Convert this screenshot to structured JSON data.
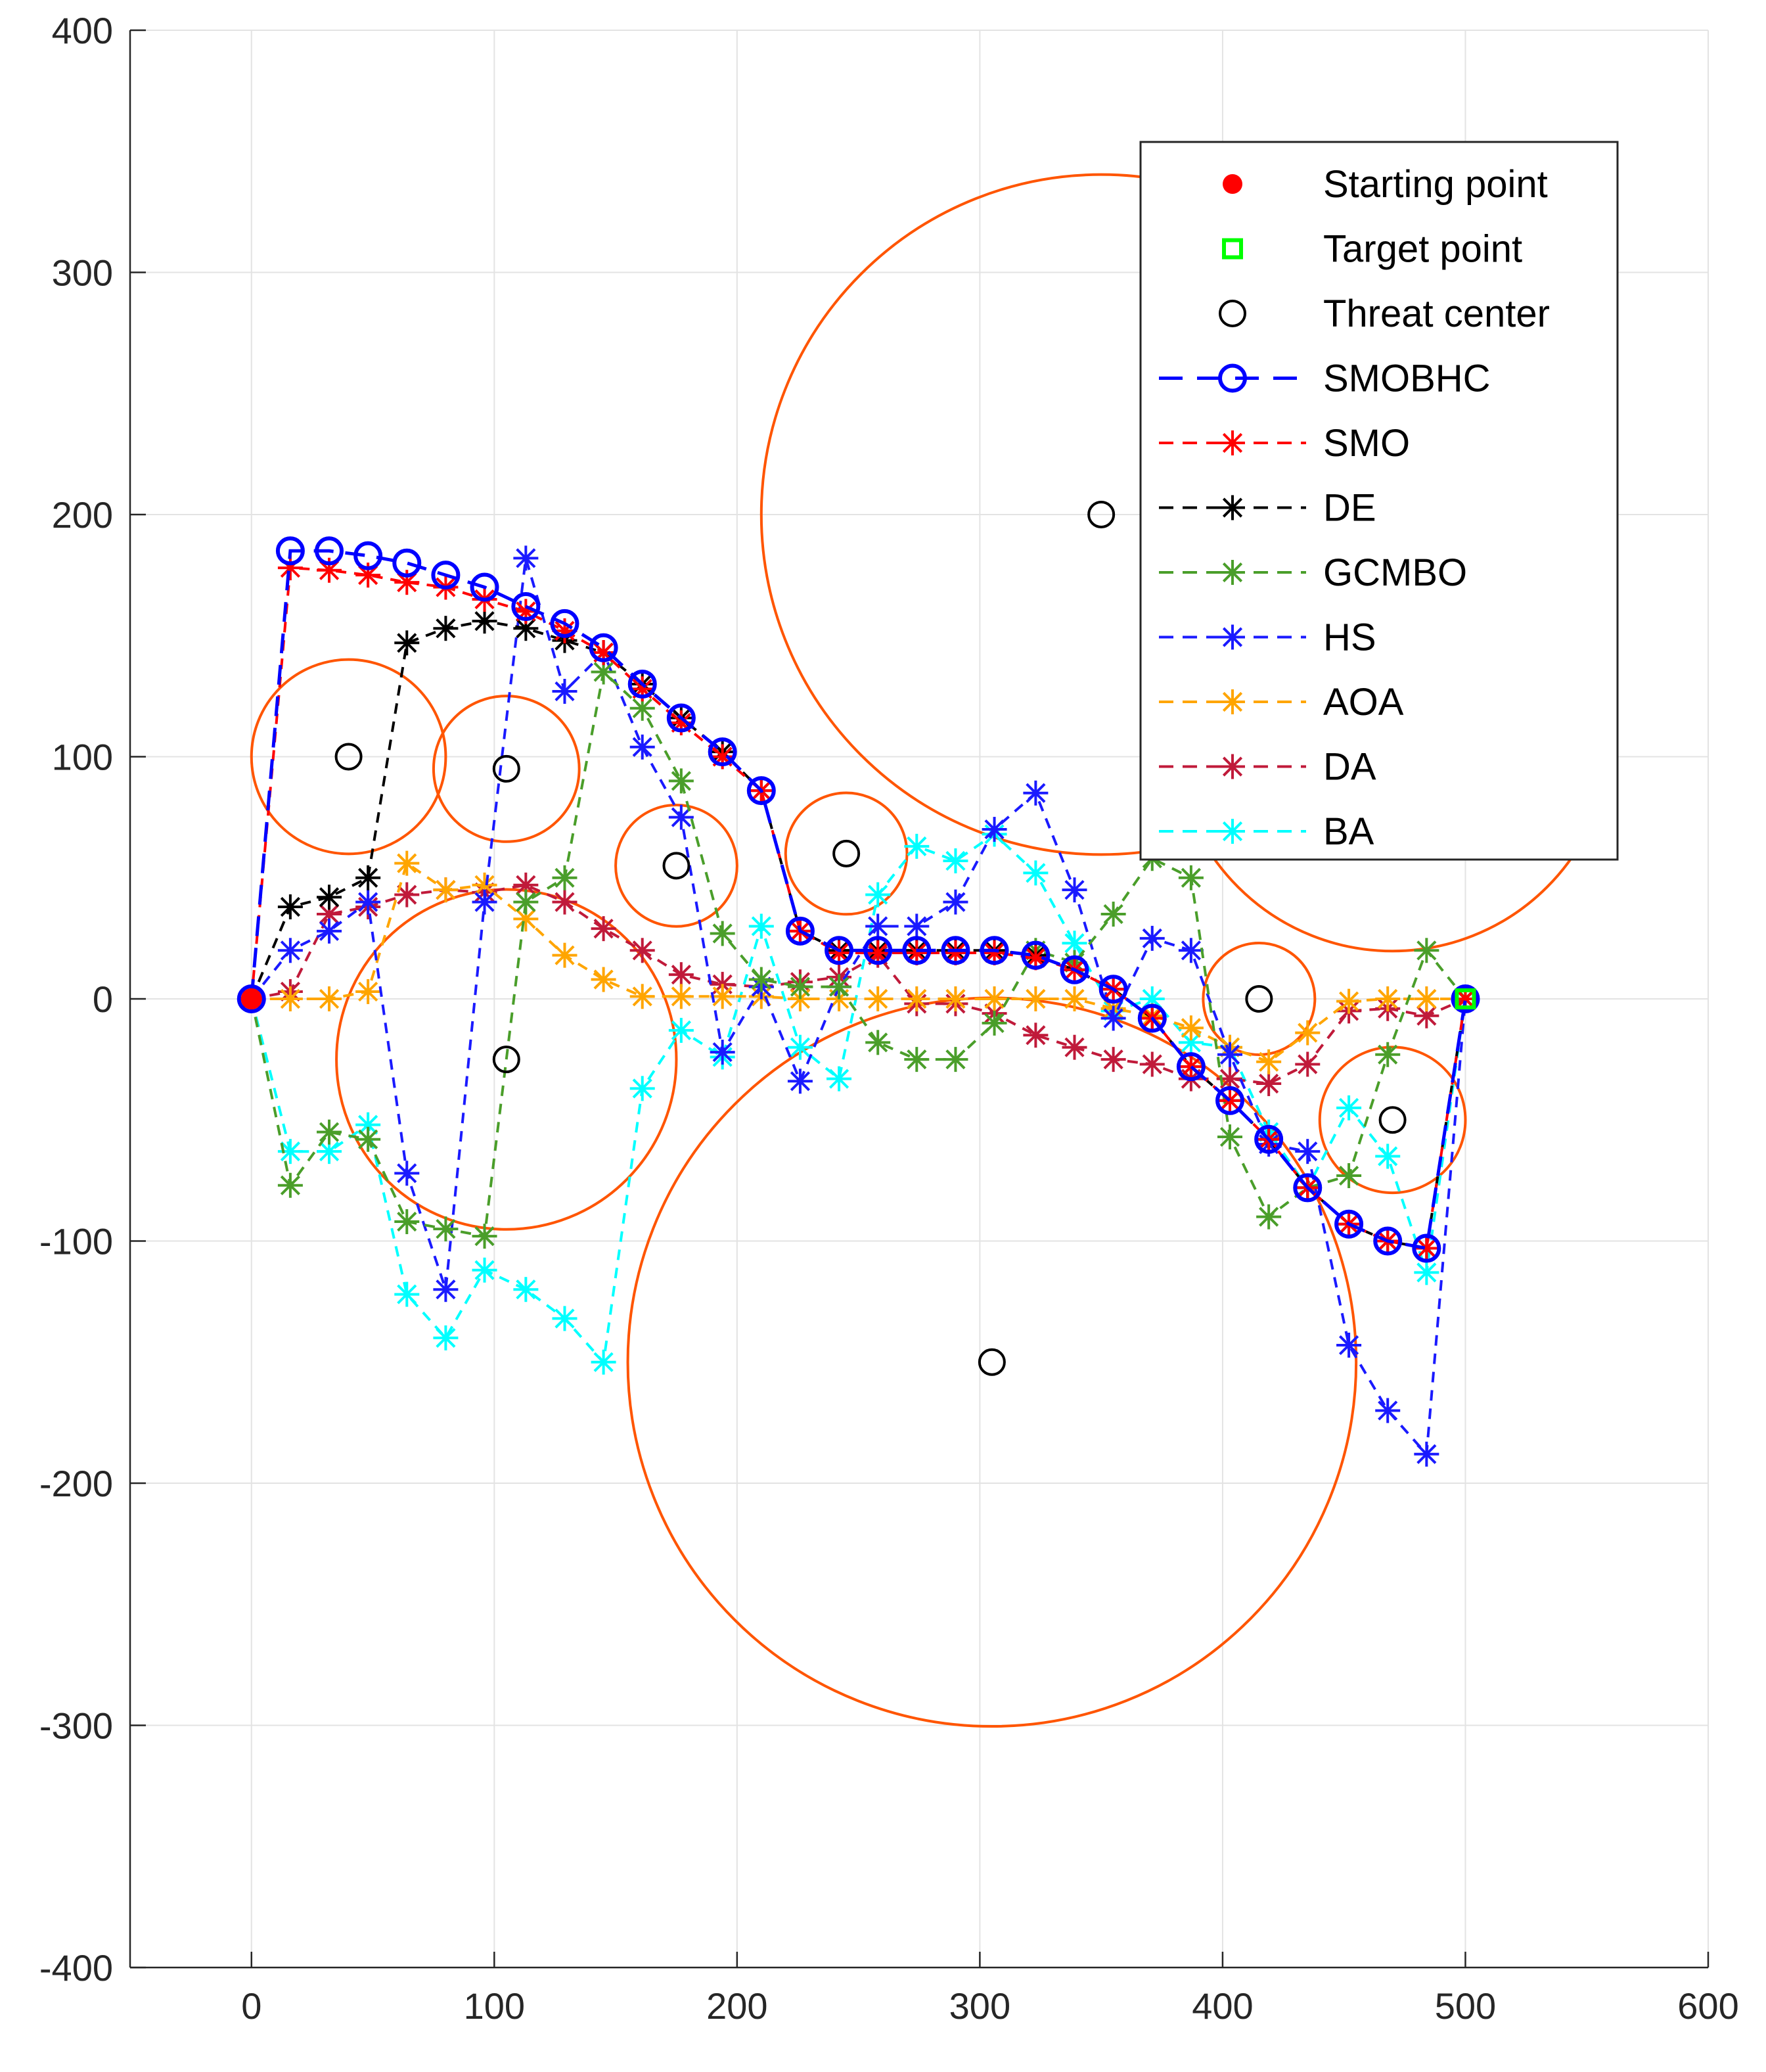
{
  "chart_data": {
    "type": "scatter",
    "title": "",
    "xlabel": "",
    "ylabel": "",
    "xlim": [
      -50,
      600
    ],
    "ylim": [
      -400,
      400
    ],
    "xticks": [
      0,
      100,
      200,
      300,
      400,
      500,
      600
    ],
    "yticks": [
      -400,
      -300,
      -200,
      -100,
      0,
      100,
      200,
      300,
      400
    ],
    "grid": true,
    "legend_position": "top-right",
    "start_point": {
      "name": "Starting point",
      "x": 0,
      "y": 0,
      "color": "#ff0000"
    },
    "target_point": {
      "name": "Target point",
      "x": 500,
      "y": 0,
      "color": "#00ff00"
    },
    "threats": {
      "name": "Threat center",
      "circle_color": "#ff5500",
      "items": [
        {
          "x": 40,
          "y": 100,
          "r": 40
        },
        {
          "x": 105,
          "y": 95,
          "r": 30
        },
        {
          "x": 175,
          "y": 55,
          "r": 25
        },
        {
          "x": 245,
          "y": 60,
          "r": 25
        },
        {
          "x": 105,
          "y": -25,
          "r": 70
        },
        {
          "x": 350,
          "y": 200,
          "r": 140
        },
        {
          "x": 470,
          "y": 110,
          "r": 90
        },
        {
          "x": 305,
          "y": -150,
          "r": 150
        },
        {
          "x": 415,
          "y": 0,
          "r": 23
        },
        {
          "x": 470,
          "y": -50,
          "r": 30
        }
      ]
    },
    "series": [
      {
        "name": "SMOBHC",
        "color": "#0000ff",
        "marker": "circle",
        "x": [
          0,
          16,
          32,
          48,
          64,
          80,
          96,
          113,
          129,
          145,
          161,
          177,
          194,
          210,
          226,
          242,
          258,
          274,
          290,
          306,
          323,
          339,
          355,
          371,
          387,
          403,
          419,
          435,
          452,
          468,
          484,
          500
        ],
        "y": [
          0,
          185,
          185,
          183,
          180,
          175,
          170,
          162,
          155,
          145,
          130,
          116,
          102,
          86,
          28,
          20,
          20,
          20,
          20,
          20,
          18,
          12,
          4,
          -8,
          -28,
          -42,
          -58,
          -78,
          -93,
          -100,
          -103,
          0
        ]
      },
      {
        "name": "SMO",
        "color": "#ff0000",
        "marker": "star",
        "x": [
          0,
          16,
          32,
          48,
          64,
          80,
          96,
          113,
          129,
          145,
          161,
          177,
          194,
          210,
          226,
          242,
          258,
          274,
          290,
          306,
          323,
          339,
          355,
          371,
          387,
          403,
          419,
          435,
          452,
          468,
          484,
          500
        ],
        "y": [
          0,
          178,
          177,
          175,
          172,
          170,
          165,
          160,
          152,
          143,
          128,
          114,
          100,
          86,
          28,
          19,
          19,
          19,
          19,
          19,
          17,
          12,
          4,
          -8,
          -28,
          -42,
          -58,
          -78,
          -93,
          -100,
          -103,
          0
        ]
      },
      {
        "name": "DE",
        "color": "#000000",
        "marker": "star",
        "x": [
          0,
          16,
          32,
          48,
          64,
          80,
          96,
          113,
          129,
          145,
          161,
          177,
          194,
          210,
          226,
          242,
          258,
          274,
          290,
          306,
          323,
          339,
          355,
          371,
          387,
          403,
          419,
          435,
          452,
          468,
          484,
          500
        ],
        "y": [
          0,
          38,
          42,
          50,
          147,
          153,
          156,
          153,
          148,
          143,
          130,
          116,
          102,
          86,
          28,
          20,
          20,
          20,
          20,
          20,
          18,
          12,
          4,
          -8,
          -28,
          -42,
          -58,
          -78,
          -93,
          -100,
          -103,
          0
        ]
      },
      {
        "name": "GCMBO",
        "color": "#4a9e2a",
        "marker": "star",
        "x": [
          0,
          16,
          32,
          48,
          64,
          80,
          96,
          113,
          129,
          145,
          161,
          177,
          194,
          210,
          226,
          242,
          258,
          274,
          290,
          306,
          323,
          339,
          355,
          371,
          387,
          403,
          419,
          435,
          452,
          468,
          484,
          500
        ],
        "y": [
          0,
          -77,
          -55,
          -58,
          -92,
          -95,
          -98,
          40,
          50,
          135,
          120,
          90,
          27,
          8,
          5,
          5,
          -18,
          -25,
          -25,
          -10,
          20,
          15,
          35,
          58,
          50,
          -57,
          -90,
          -78,
          -73,
          -23,
          20,
          0
        ]
      },
      {
        "name": "HS",
        "color": "#1a1aff",
        "marker": "star",
        "x": [
          0,
          16,
          32,
          48,
          64,
          80,
          96,
          113,
          129,
          145,
          161,
          177,
          194,
          210,
          226,
          242,
          258,
          274,
          290,
          306,
          323,
          339,
          355,
          371,
          387,
          403,
          419,
          435,
          452,
          468,
          484,
          500
        ],
        "y": [
          0,
          20,
          28,
          40,
          -72,
          -120,
          40,
          182,
          127,
          143,
          104,
          75,
          -22,
          5,
          -34,
          5,
          30,
          30,
          40,
          70,
          85,
          45,
          -8,
          25,
          20,
          -23,
          -60,
          -63,
          -143,
          -170,
          -188,
          0
        ]
      },
      {
        "name": "AOA",
        "color": "#ffa500",
        "marker": "star",
        "x": [
          0,
          16,
          32,
          48,
          64,
          80,
          96,
          113,
          129,
          145,
          161,
          177,
          194,
          210,
          226,
          242,
          258,
          274,
          290,
          306,
          323,
          339,
          355,
          371,
          387,
          403,
          419,
          435,
          452,
          468,
          484,
          500
        ],
        "y": [
          0,
          0,
          0,
          3,
          56,
          45,
          47,
          33,
          18,
          8,
          1,
          1,
          1,
          1,
          0,
          0,
          0,
          0,
          0,
          0,
          0,
          0,
          -4,
          -7,
          -12,
          -20,
          -26,
          -14,
          -1,
          0,
          0,
          0
        ]
      },
      {
        "name": "DA",
        "color": "#c01a3a",
        "marker": "star",
        "x": [
          0,
          16,
          32,
          48,
          64,
          80,
          96,
          113,
          129,
          145,
          161,
          177,
          194,
          210,
          226,
          242,
          258,
          274,
          290,
          306,
          323,
          339,
          355,
          371,
          387,
          403,
          419,
          435,
          452,
          468,
          484,
          500
        ],
        "y": [
          0,
          3,
          35,
          38,
          43,
          45,
          44,
          47,
          40,
          29,
          20,
          10,
          6,
          5,
          7,
          9,
          18,
          -2,
          -2,
          -6,
          -15,
          -20,
          -25,
          -27,
          -33,
          -33,
          -35,
          -27,
          -5,
          -4,
          -7,
          0
        ]
      },
      {
        "name": "BA",
        "color": "#00ffff",
        "marker": "star",
        "x": [
          0,
          16,
          32,
          48,
          64,
          80,
          96,
          113,
          129,
          145,
          161,
          177,
          194,
          210,
          226,
          242,
          258,
          274,
          290,
          306,
          323,
          339,
          355,
          371,
          387,
          403,
          419,
          435,
          452,
          468,
          484,
          500
        ],
        "y": [
          0,
          -63,
          -63,
          -52,
          -122,
          -140,
          -112,
          -120,
          -132,
          -150,
          -37,
          -13,
          -24,
          30,
          -20,
          -33,
          43,
          63,
          57,
          68,
          52,
          23,
          -5,
          0,
          -18,
          -20,
          -55,
          -78,
          -45,
          -65,
          -113,
          0
        ]
      }
    ]
  }
}
